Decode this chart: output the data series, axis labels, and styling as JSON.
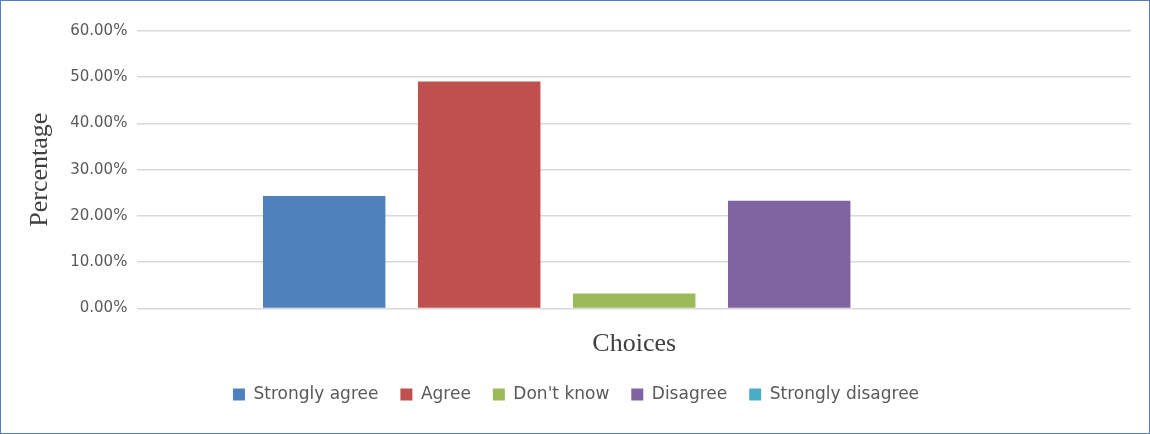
{
  "chart_data": {
    "type": "bar",
    "xlabel": "Choices",
    "ylabel": "Percentage",
    "categories": [
      null
    ],
    "series": [
      {
        "name": "Strongly agree",
        "color": "#4f81bd",
        "values": [
          24.3
        ]
      },
      {
        "name": "Agree",
        "color": "#c0504d",
        "values": [
          49.1
        ]
      },
      {
        "name": "Don't know",
        "color": "#9bbb59",
        "values": [
          3.2
        ]
      },
      {
        "name": "Disagree",
        "color": "#8064a2",
        "values": [
          23.3
        ]
      },
      {
        "name": "Strongly disagree",
        "color": "#4bacc6",
        "values": [
          0
        ]
      }
    ],
    "ylim": [
      0,
      60
    ],
    "yticks": [
      {
        "value": 0,
        "label": "0.00%"
      },
      {
        "value": 10,
        "label": "10.00%"
      },
      {
        "value": 20,
        "label": "20.00%"
      },
      {
        "value": 30,
        "label": "30.00%"
      },
      {
        "value": 40,
        "label": "40.00%"
      },
      {
        "value": 50,
        "label": "50.00%"
      },
      {
        "value": 60,
        "label": "60.00%"
      }
    ],
    "grid": "y",
    "legend": "bottom"
  }
}
